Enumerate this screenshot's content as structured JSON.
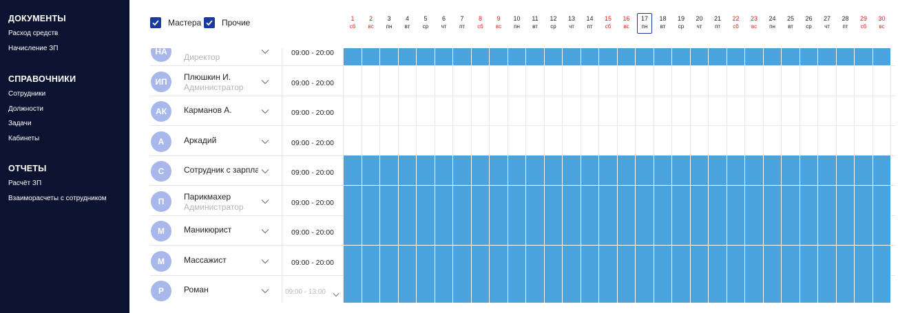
{
  "sidebar": {
    "sections": [
      {
        "title": "ДОКУМЕНТЫ",
        "items": [
          "Расход средств",
          "Начисление ЗП"
        ]
      },
      {
        "title": "СПРАВОЧНИКИ",
        "items": [
          "Сотрудники",
          "Должности",
          "Задачи",
          "Кабинеты"
        ]
      },
      {
        "title": "ОТЧЕТЫ",
        "items": [
          "Расчёт ЗП",
          "Взаиморасчеты с сотрудником"
        ]
      }
    ]
  },
  "filters": {
    "masters": {
      "label": "Мастера",
      "checked": true
    },
    "others": {
      "label": "Прочие",
      "checked": true
    }
  },
  "days": [
    {
      "num": "1",
      "wd": "сб",
      "weekend": true
    },
    {
      "num": "2",
      "wd": "вс",
      "weekend": true
    },
    {
      "num": "3",
      "wd": "пн",
      "weekend": false
    },
    {
      "num": "4",
      "wd": "вт",
      "weekend": false
    },
    {
      "num": "5",
      "wd": "ср",
      "weekend": false
    },
    {
      "num": "6",
      "wd": "чт",
      "weekend": false
    },
    {
      "num": "7",
      "wd": "пт",
      "weekend": false
    },
    {
      "num": "8",
      "wd": "сб",
      "weekend": true
    },
    {
      "num": "9",
      "wd": "вс",
      "weekend": true
    },
    {
      "num": "10",
      "wd": "пн",
      "weekend": false
    },
    {
      "num": "11",
      "wd": "вт",
      "weekend": false
    },
    {
      "num": "12",
      "wd": "ср",
      "weekend": false
    },
    {
      "num": "13",
      "wd": "чт",
      "weekend": false
    },
    {
      "num": "14",
      "wd": "пт",
      "weekend": false
    },
    {
      "num": "15",
      "wd": "сб",
      "weekend": true
    },
    {
      "num": "16",
      "wd": "вс",
      "weekend": true
    },
    {
      "num": "17",
      "wd": "пн",
      "weekend": false,
      "today": true
    },
    {
      "num": "18",
      "wd": "вт",
      "weekend": false
    },
    {
      "num": "19",
      "wd": "ср",
      "weekend": false
    },
    {
      "num": "20",
      "wd": "чт",
      "weekend": false
    },
    {
      "num": "21",
      "wd": "пт",
      "weekend": false
    },
    {
      "num": "22",
      "wd": "сб",
      "weekend": true
    },
    {
      "num": "23",
      "wd": "вс",
      "weekend": true
    },
    {
      "num": "24",
      "wd": "пн",
      "weekend": false
    },
    {
      "num": "25",
      "wd": "вт",
      "weekend": false
    },
    {
      "num": "26",
      "wd": "ср",
      "weekend": false
    },
    {
      "num": "27",
      "wd": "чт",
      "weekend": false
    },
    {
      "num": "28",
      "wd": "пт",
      "weekend": false
    },
    {
      "num": "29",
      "wd": "сб",
      "weekend": true
    },
    {
      "num": "30",
      "wd": "вс",
      "weekend": true
    }
  ],
  "employees": [
    {
      "initials": "НА",
      "name": "",
      "role": "Директор",
      "time": "09:00 - 20:00",
      "time_muted": false,
      "scheduled": true
    },
    {
      "initials": "ИП",
      "name": "Плюшкин И.",
      "role": "Администратор",
      "time": "09:00 - 20:00",
      "time_muted": false,
      "scheduled": false
    },
    {
      "initials": "АК",
      "name": "Карманов А.",
      "role": "",
      "time": "09:00 - 20:00",
      "time_muted": false,
      "scheduled": false
    },
    {
      "initials": "А",
      "name": "Аркадий",
      "role": "",
      "time": "09:00 - 20:00",
      "time_muted": false,
      "scheduled": false
    },
    {
      "initials": "С",
      "name": "Сотрудник с зарплатой",
      "role": "",
      "time": "09:00 - 20:00",
      "time_muted": false,
      "scheduled": true
    },
    {
      "initials": "П",
      "name": "Парикмахер",
      "role": "Администратор",
      "time": "09:00 - 20:00",
      "time_muted": false,
      "scheduled": true
    },
    {
      "initials": "М",
      "name": "Маникюрист",
      "role": "",
      "time": "09:00 - 20:00",
      "time_muted": false,
      "scheduled": true
    },
    {
      "initials": "М",
      "name": "Массажист",
      "role": "",
      "time": "09:00 - 20:00",
      "time_muted": false,
      "scheduled": true
    },
    {
      "initials": "Р",
      "name": "Роман",
      "role": "",
      "time": "09:00 - 13:00",
      "time_muted": true,
      "scheduled": true
    }
  ],
  "colors": {
    "sidebar_bg": "#0c1330",
    "accent": "#1a3a9e",
    "schedule_fill": "#4aa3dd",
    "avatar": "#a9b8eb",
    "weekend": "#e02020"
  }
}
